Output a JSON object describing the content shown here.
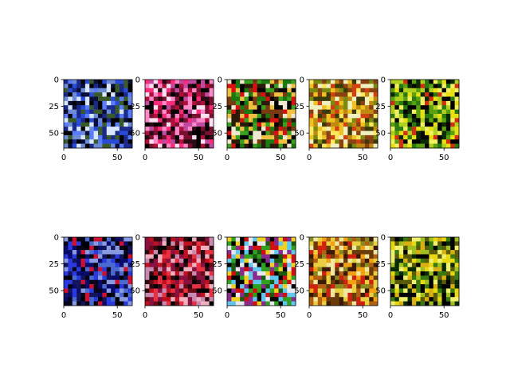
{
  "chart_data": {
    "type": "heatmap",
    "layout": {
      "rows": 2,
      "cols": 5
    },
    "image_size": [
      64,
      64
    ],
    "xlim": [
      0,
      64
    ],
    "ylim": [
      64,
      0
    ],
    "xticks": [
      0,
      50
    ],
    "yticks": [
      0,
      25,
      50
    ],
    "tick_labels_x": [
      "0",
      "50"
    ],
    "tick_labels_y": [
      "0",
      "25",
      "50"
    ],
    "panels": [
      {
        "palette": [
          "#000000",
          "#1b2a8a",
          "#2a4bd8",
          "#5a7cff",
          "#0a0f3a",
          "#6e8bd6",
          "#d8e6ff",
          "#3a5a2a"
        ]
      },
      {
        "palette": [
          "#000000",
          "#b0103a",
          "#ff2b7a",
          "#7a1030",
          "#ff88c8",
          "#c04aa0",
          "#2a0a14",
          "#ffe0f0"
        ]
      },
      {
        "palette": [
          "#000000",
          "#1a7a10",
          "#d81010",
          "#f0e8d0",
          "#3aa020",
          "#7a3a10",
          "#f0c040",
          "#2a1a0a"
        ]
      },
      {
        "palette": [
          "#c08a10",
          "#f0c020",
          "#7a8a10",
          "#ffe860",
          "#8a4010",
          "#f0f0c0",
          "#3a3a0a",
          "#d04010"
        ]
      },
      {
        "palette": [
          "#000000",
          "#2a7a10",
          "#e8e010",
          "#0a2a00",
          "#b0d020",
          "#d03010",
          "#5aa010",
          "#f0f060"
        ]
      },
      {
        "palette": [
          "#000000",
          "#0a0a6a",
          "#2a3ae0",
          "#14145a",
          "#8a9ae0",
          "#d01030",
          "#060618",
          "#4a6ad0"
        ]
      },
      {
        "palette": [
          "#000000",
          "#c01020",
          "#e83040",
          "#6a0a14",
          "#c88ab0",
          "#8a1040",
          "#f0b0c0",
          "#2a0a10"
        ]
      },
      {
        "palette": [
          "#000000",
          "#e8e8f0",
          "#d01010",
          "#30a020",
          "#60c8f0",
          "#f0d020",
          "#8a2a8a",
          "#1a5a10"
        ]
      },
      {
        "palette": [
          "#b06010",
          "#f0a010",
          "#e8d040",
          "#6a3a08",
          "#d02010",
          "#f0e8a0",
          "#8a8a20",
          "#3a1a04"
        ]
      },
      {
        "palette": [
          "#000000",
          "#e8d810",
          "#3a7a10",
          "#f0f070",
          "#0a2a04",
          "#a0c020",
          "#5a5a08",
          "#d8b010"
        ]
      }
    ]
  }
}
